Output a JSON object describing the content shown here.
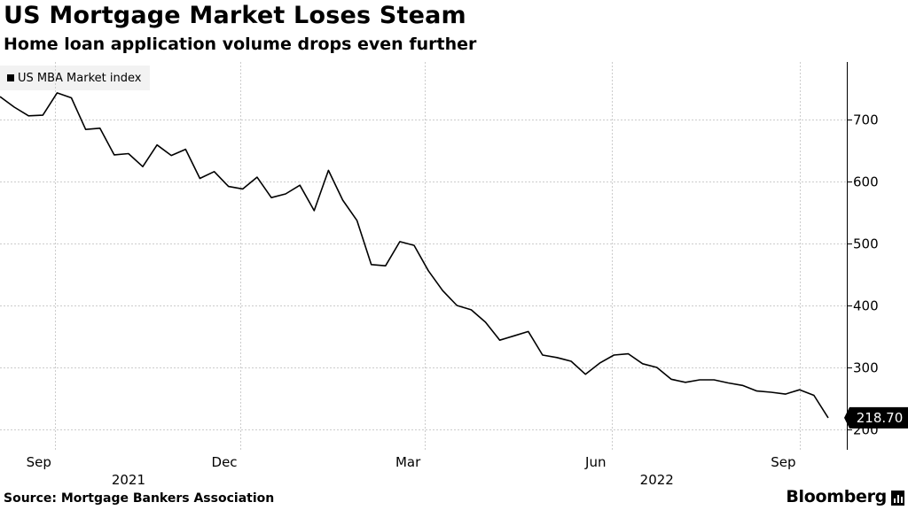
{
  "title": "US Mortgage Market Loses Steam",
  "subtitle": "Home loan application volume drops even further",
  "source": "Source: Mortgage Bankers Association",
  "brand": "Bloomberg",
  "brand_icon": "bloomberg-chart-icon",
  "colors": {
    "line": "#000000",
    "grid": "#cccccc",
    "legend_bg": "#f2f2f2",
    "last_value_tag": "#000000"
  },
  "chart_data": {
    "type": "line",
    "title": "US Mortgage Market Loses Steam",
    "subtitle": "Home loan application volume drops even further",
    "legend": [
      "US MBA Market index"
    ],
    "legend_placement": "top-left",
    "y_axis_position": "right",
    "ylim": [
      200,
      780
    ],
    "yticks": [
      200,
      300,
      400,
      500,
      600,
      700
    ],
    "xlim": [
      "2021-08-13",
      "2022-09-30"
    ],
    "x_ticks": [
      {
        "label": "Sep",
        "date": "2021-09-01"
      },
      {
        "label": "Dec",
        "date": "2021-12-01"
      },
      {
        "label": "Mar",
        "date": "2022-03-01"
      },
      {
        "label": "Jun",
        "date": "2022-06-01"
      },
      {
        "label": "Sep",
        "date": "2022-09-01"
      }
    ],
    "year_labels": [
      {
        "label": "2021",
        "date": "2021-10-15"
      },
      {
        "label": "2022",
        "date": "2022-07-01"
      }
    ],
    "year_separators": [
      "2021-09-09",
      "2021-12-09",
      "2022-03-09",
      "2022-06-09",
      "2022-09-09"
    ],
    "grid": true,
    "last_value_label": "218.70",
    "series": [
      {
        "name": "US MBA Market index",
        "x": [
          "2021-08-13",
          "2021-08-20",
          "2021-08-27",
          "2021-09-03",
          "2021-09-10",
          "2021-09-17",
          "2021-09-24",
          "2021-10-01",
          "2021-10-08",
          "2021-10-15",
          "2021-10-22",
          "2021-10-29",
          "2021-11-05",
          "2021-11-12",
          "2021-11-19",
          "2021-11-26",
          "2021-12-03",
          "2021-12-10",
          "2021-12-17",
          "2021-12-24",
          "2021-12-31",
          "2022-01-07",
          "2022-01-14",
          "2022-01-21",
          "2022-01-28",
          "2022-02-04",
          "2022-02-11",
          "2022-02-18",
          "2022-02-25",
          "2022-03-04",
          "2022-03-11",
          "2022-03-18",
          "2022-03-25",
          "2022-04-01",
          "2022-04-08",
          "2022-04-15",
          "2022-04-22",
          "2022-04-29",
          "2022-05-06",
          "2022-05-13",
          "2022-05-20",
          "2022-05-27",
          "2022-06-03",
          "2022-06-10",
          "2022-06-17",
          "2022-06-24",
          "2022-07-01",
          "2022-07-08",
          "2022-07-15",
          "2022-07-22",
          "2022-07-29",
          "2022-08-05",
          "2022-08-12",
          "2022-08-19",
          "2022-08-26",
          "2022-09-02",
          "2022-09-09",
          "2022-09-16",
          "2022-09-23"
        ],
        "y": [
          737,
          720,
          706,
          707,
          743,
          735,
          684,
          686,
          643,
          645,
          624,
          659,
          642,
          652,
          605,
          616,
          592,
          588,
          607,
          574,
          580,
          594,
          553,
          618,
          570,
          537,
          466,
          464,
          503,
          497,
          456,
          424,
          400,
          393,
          373,
          344,
          351,
          358,
          320,
          316,
          310,
          289,
          307,
          320,
          322,
          306,
          300,
          281,
          276,
          280,
          280,
          275,
          271,
          262,
          260,
          257,
          264,
          255,
          218.7
        ]
      }
    ]
  }
}
